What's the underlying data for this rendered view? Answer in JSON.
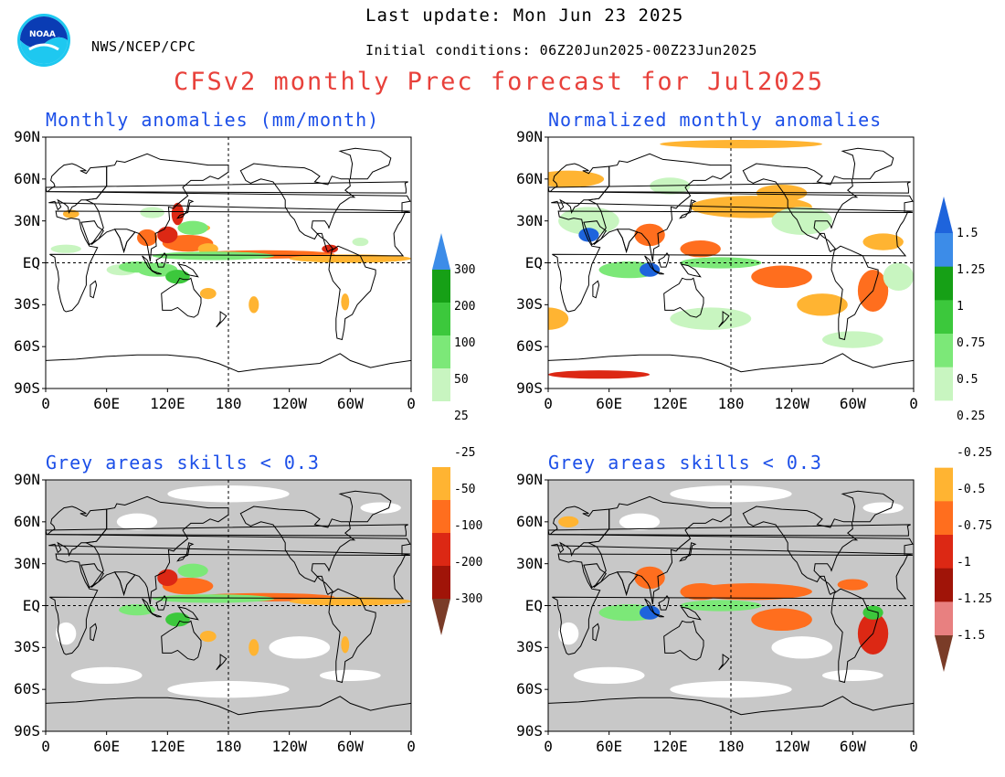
{
  "header": {
    "agency": "NWS/NCEP/CPC",
    "last_update": "Last update: Mon Jun 23 2025",
    "initial_conditions": "Initial conditions: 06Z20Jun2025-00Z23Jun2025",
    "main_title": "CFSv2 monthly Prec forecast for Jul2025",
    "logo_text": "NOAA"
  },
  "colors": {
    "title_red": "#e8413b",
    "panel_title_blue": "#1c4fe8",
    "greens": [
      "#c8f5c0",
      "#7ce878",
      "#3cc83c",
      "#16a016"
    ],
    "blues": [
      "#3c8ce8",
      "#1e64dc"
    ],
    "oranges": [
      "#ffb432",
      "#ff6e1e",
      "#dc2814",
      "#a01408"
    ],
    "browns": [
      "#7a3c28"
    ],
    "pink": "#e88080",
    "grey_mask": "#c8c8c8"
  },
  "axes": {
    "lat_ticks": [
      "90N",
      "60N",
      "30N",
      "EQ",
      "30S",
      "60S",
      "90S"
    ],
    "lon_ticks": [
      "0",
      "60E",
      "120E",
      "180",
      "120W",
      "60W",
      "0"
    ]
  },
  "panels": [
    {
      "id": "tl",
      "title": "Monthly anomalies (mm/month)",
      "grey_mask": false
    },
    {
      "id": "tr",
      "title": "Normalized monthly anomalies",
      "grey_mask": false
    },
    {
      "id": "bl",
      "title": "Grey areas skills < 0.3",
      "grey_mask": true
    },
    {
      "id": "br",
      "title": "Grey areas skills < 0.3",
      "grey_mask": true
    }
  ],
  "colorbars": [
    {
      "id": "left",
      "labels": [
        "300",
        "200",
        "100",
        "50",
        "25",
        "-25",
        "-50",
        "-100",
        "-200",
        "-300"
      ]
    },
    {
      "id": "right",
      "labels": [
        "1.5",
        "1.25",
        "1",
        "0.75",
        "0.5",
        "0.25",
        "-0.25",
        "-0.5",
        "-0.75",
        "-1",
        "-1.25",
        "-1.5"
      ]
    }
  ]
}
